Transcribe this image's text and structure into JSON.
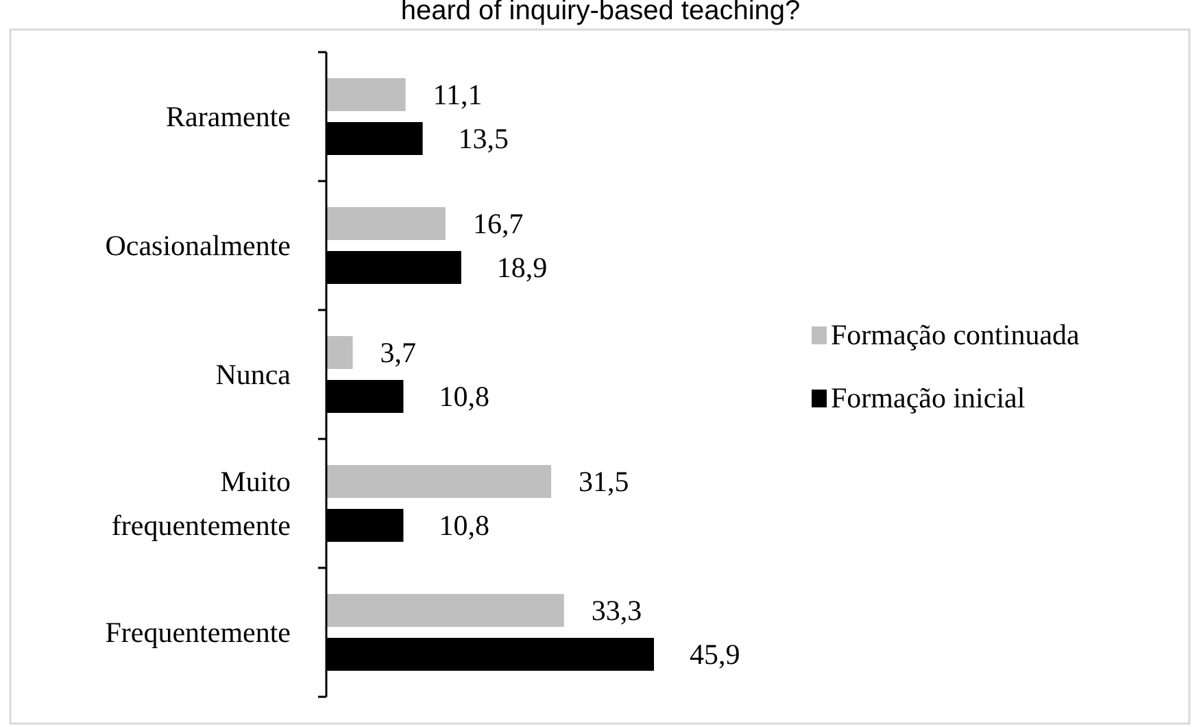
{
  "chart_data": {
    "type": "bar",
    "orientation": "horizontal",
    "title": "heard of inquiry-based teaching?",
    "categories": [
      "Raramente",
      "Ocasionalmente",
      "Nunca",
      "Muito frequentemente",
      "Frequentemente"
    ],
    "series": [
      {
        "name": "Formação continuada",
        "color": "#bfbfbf",
        "values": [
          11.1,
          16.7,
          3.7,
          31.5,
          33.3
        ],
        "value_labels": [
          "11,1",
          "16,7",
          "3,7",
          "31,5",
          "33,3"
        ]
      },
      {
        "name": "Formação inicial",
        "color": "#000000",
        "values": [
          13.5,
          18.9,
          10.8,
          10.8,
          45.9
        ],
        "value_labels": [
          "13,5",
          "18,9",
          "10,8",
          "10,8",
          "45,9"
        ]
      }
    ],
    "legend": "right",
    "grid": false
  }
}
